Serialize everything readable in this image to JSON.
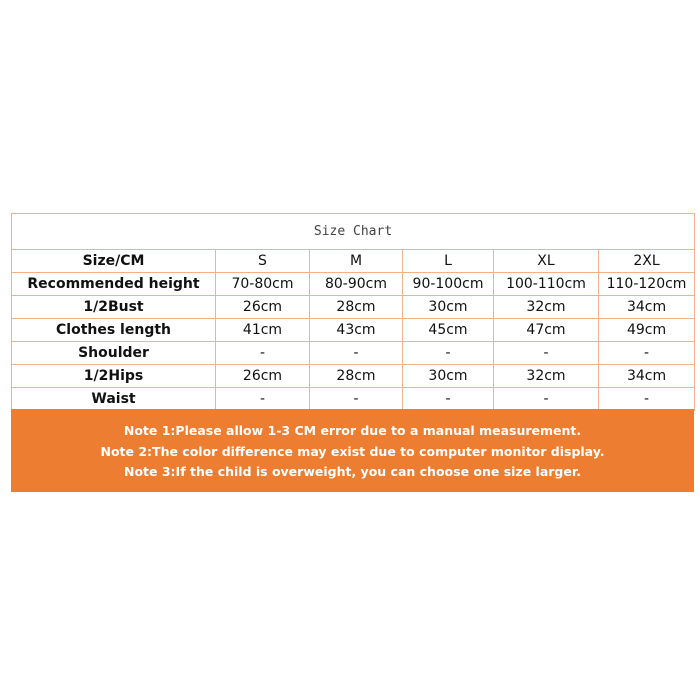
{
  "title": "Size Chart",
  "columns": [
    "Size/CM",
    "S",
    "M",
    "L",
    "XL",
    "2XL"
  ],
  "rows": [
    [
      "Recommended height",
      "70-80cm",
      "80-90cm",
      "90-100cm",
      "100-110cm",
      "110-120cm"
    ],
    [
      "1/2Bust",
      "26cm",
      "28cm",
      "30cm",
      "32cm",
      "34cm"
    ],
    [
      "Clothes length",
      "41cm",
      "43cm",
      "45cm",
      "47cm",
      "49cm"
    ],
    [
      "Shoulder",
      "-",
      "-",
      "-",
      "-",
      "-"
    ],
    [
      "1/2Hips",
      "26cm",
      "28cm",
      "30cm",
      "32cm",
      "34cm"
    ],
    [
      "Waist",
      "-",
      "-",
      "-",
      "-",
      "-"
    ]
  ],
  "notes": [
    "Note 1:Please allow 1-3 CM error due to a manual measurement.",
    "Note 2:The color difference may exist due to computer monitor display.",
    "Note 3:If the child is overweight, you can choose one size larger."
  ],
  "colors": {
    "accent": "#ed7d31",
    "border": "#f4b183"
  }
}
